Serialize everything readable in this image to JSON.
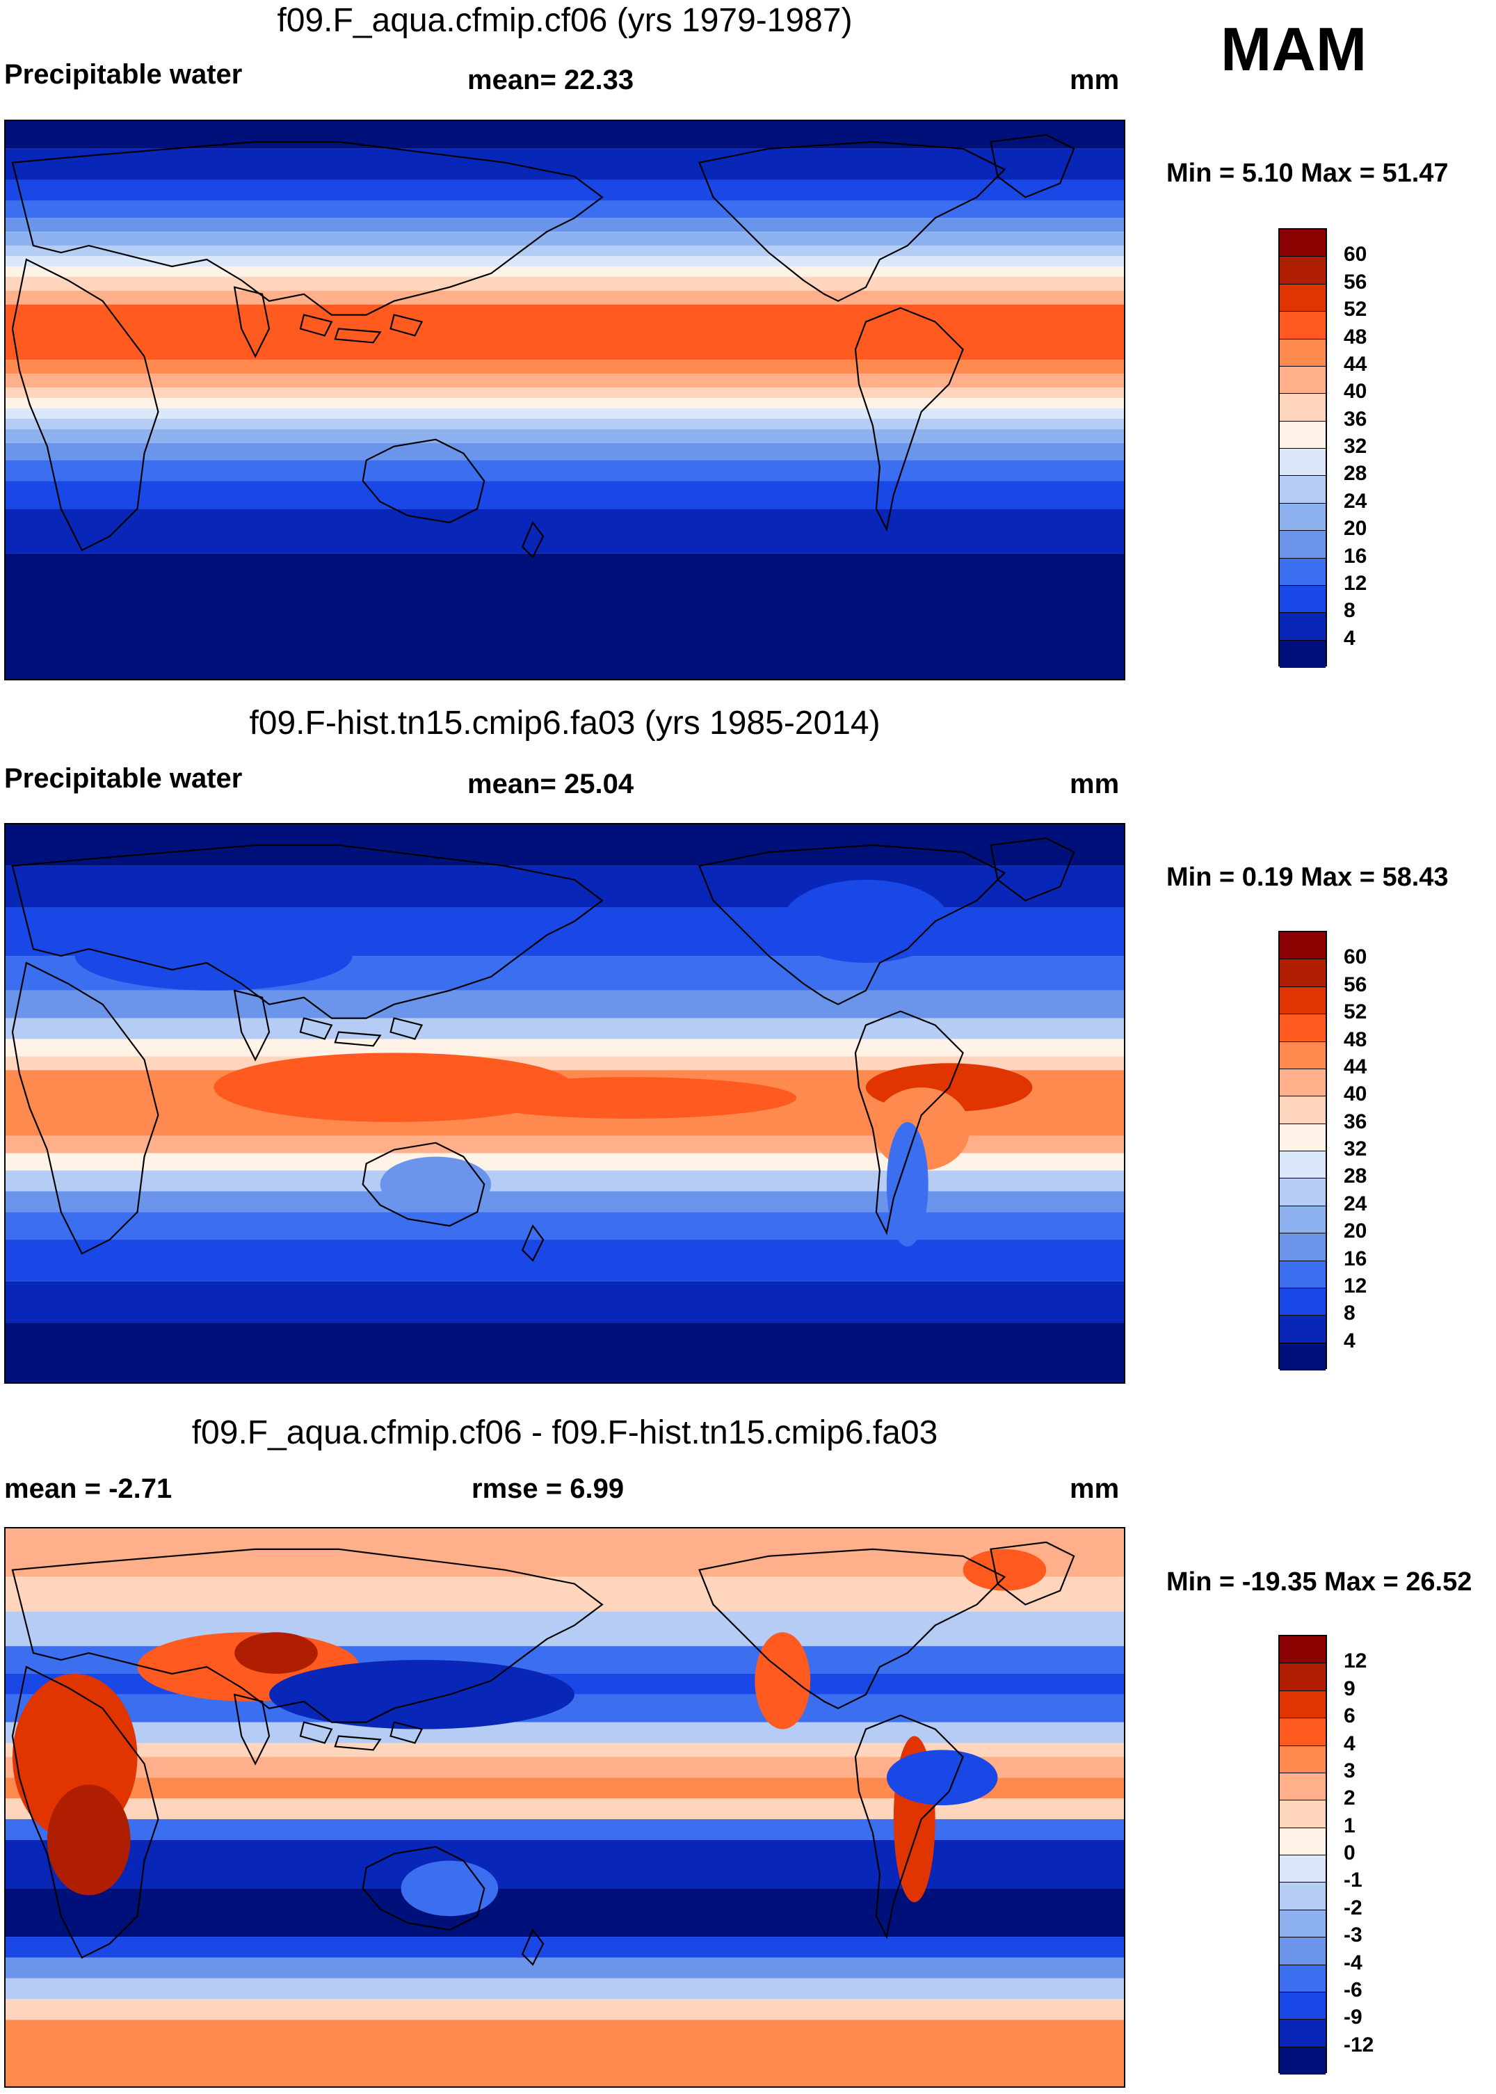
{
  "season": "MAM",
  "panels": [
    {
      "title": "f09.F_aqua.cfmip.cf06 (yrs 1979-1987)",
      "left_label": "Precipitable water",
      "center_label": "mean=  22.33",
      "unit": "mm",
      "minmax": "Min =   5.10 Max =  51.47",
      "field_type": "zonal",
      "colorbar": {
        "colors": [
          "#8b0000",
          "#b01e00",
          "#e03500",
          "#ff5a1f",
          "#ff8a50",
          "#ffb08a",
          "#ffd6bd",
          "#fff2e6",
          "#dbe8fb",
          "#b5cdf5",
          "#8eb2ef",
          "#6b95ea",
          "#3c6ef0",
          "#1a48e6",
          "#0826b8",
          "#00107a"
        ],
        "ticks": [
          "60",
          "56",
          "52",
          "48",
          "44",
          "40",
          "36",
          "32",
          "28",
          "24",
          "20",
          "16",
          "12",
          "8",
          "4"
        ]
      }
    },
    {
      "title": "f09.F-hist.tn15.cmip6.fa03 (yrs 1985-2014)",
      "left_label": "Precipitable water",
      "center_label": "mean=  25.04",
      "unit": "mm",
      "minmax": "Min =   0.19 Max =  58.43",
      "field_type": "realistic",
      "colorbar": {
        "colors": [
          "#8b0000",
          "#b01e00",
          "#e03500",
          "#ff5a1f",
          "#ff8a50",
          "#ffb08a",
          "#ffd6bd",
          "#fff2e6",
          "#dbe8fb",
          "#b5cdf5",
          "#8eb2ef",
          "#6b95ea",
          "#3c6ef0",
          "#1a48e6",
          "#0826b8",
          "#00107a"
        ],
        "ticks": [
          "60",
          "56",
          "52",
          "48",
          "44",
          "40",
          "36",
          "32",
          "28",
          "24",
          "20",
          "16",
          "12",
          "8",
          "4"
        ]
      }
    },
    {
      "title": "f09.F_aqua.cfmip.cf06 - f09.F-hist.tn15.cmip6.fa03",
      "left_label": "mean =  -2.71",
      "center_label": "rmse =   6.99",
      "unit": "mm",
      "minmax": "Min = -19.35 Max =  26.52",
      "field_type": "difference",
      "colorbar": {
        "colors": [
          "#8b0000",
          "#b01e00",
          "#e03500",
          "#ff5a1f",
          "#ff8a50",
          "#ffb08a",
          "#ffd6bd",
          "#fff2e6",
          "#dbe8fb",
          "#b5cdf5",
          "#8eb2ef",
          "#6b95ea",
          "#3c6ef0",
          "#1a48e6",
          "#0826b8",
          "#00107a"
        ],
        "ticks": [
          "12",
          "9",
          "6",
          "4",
          "3",
          "2",
          "1",
          "0",
          "-1",
          "-2",
          "-3",
          "-4",
          "-6",
          "-9",
          "-12"
        ]
      }
    }
  ]
}
